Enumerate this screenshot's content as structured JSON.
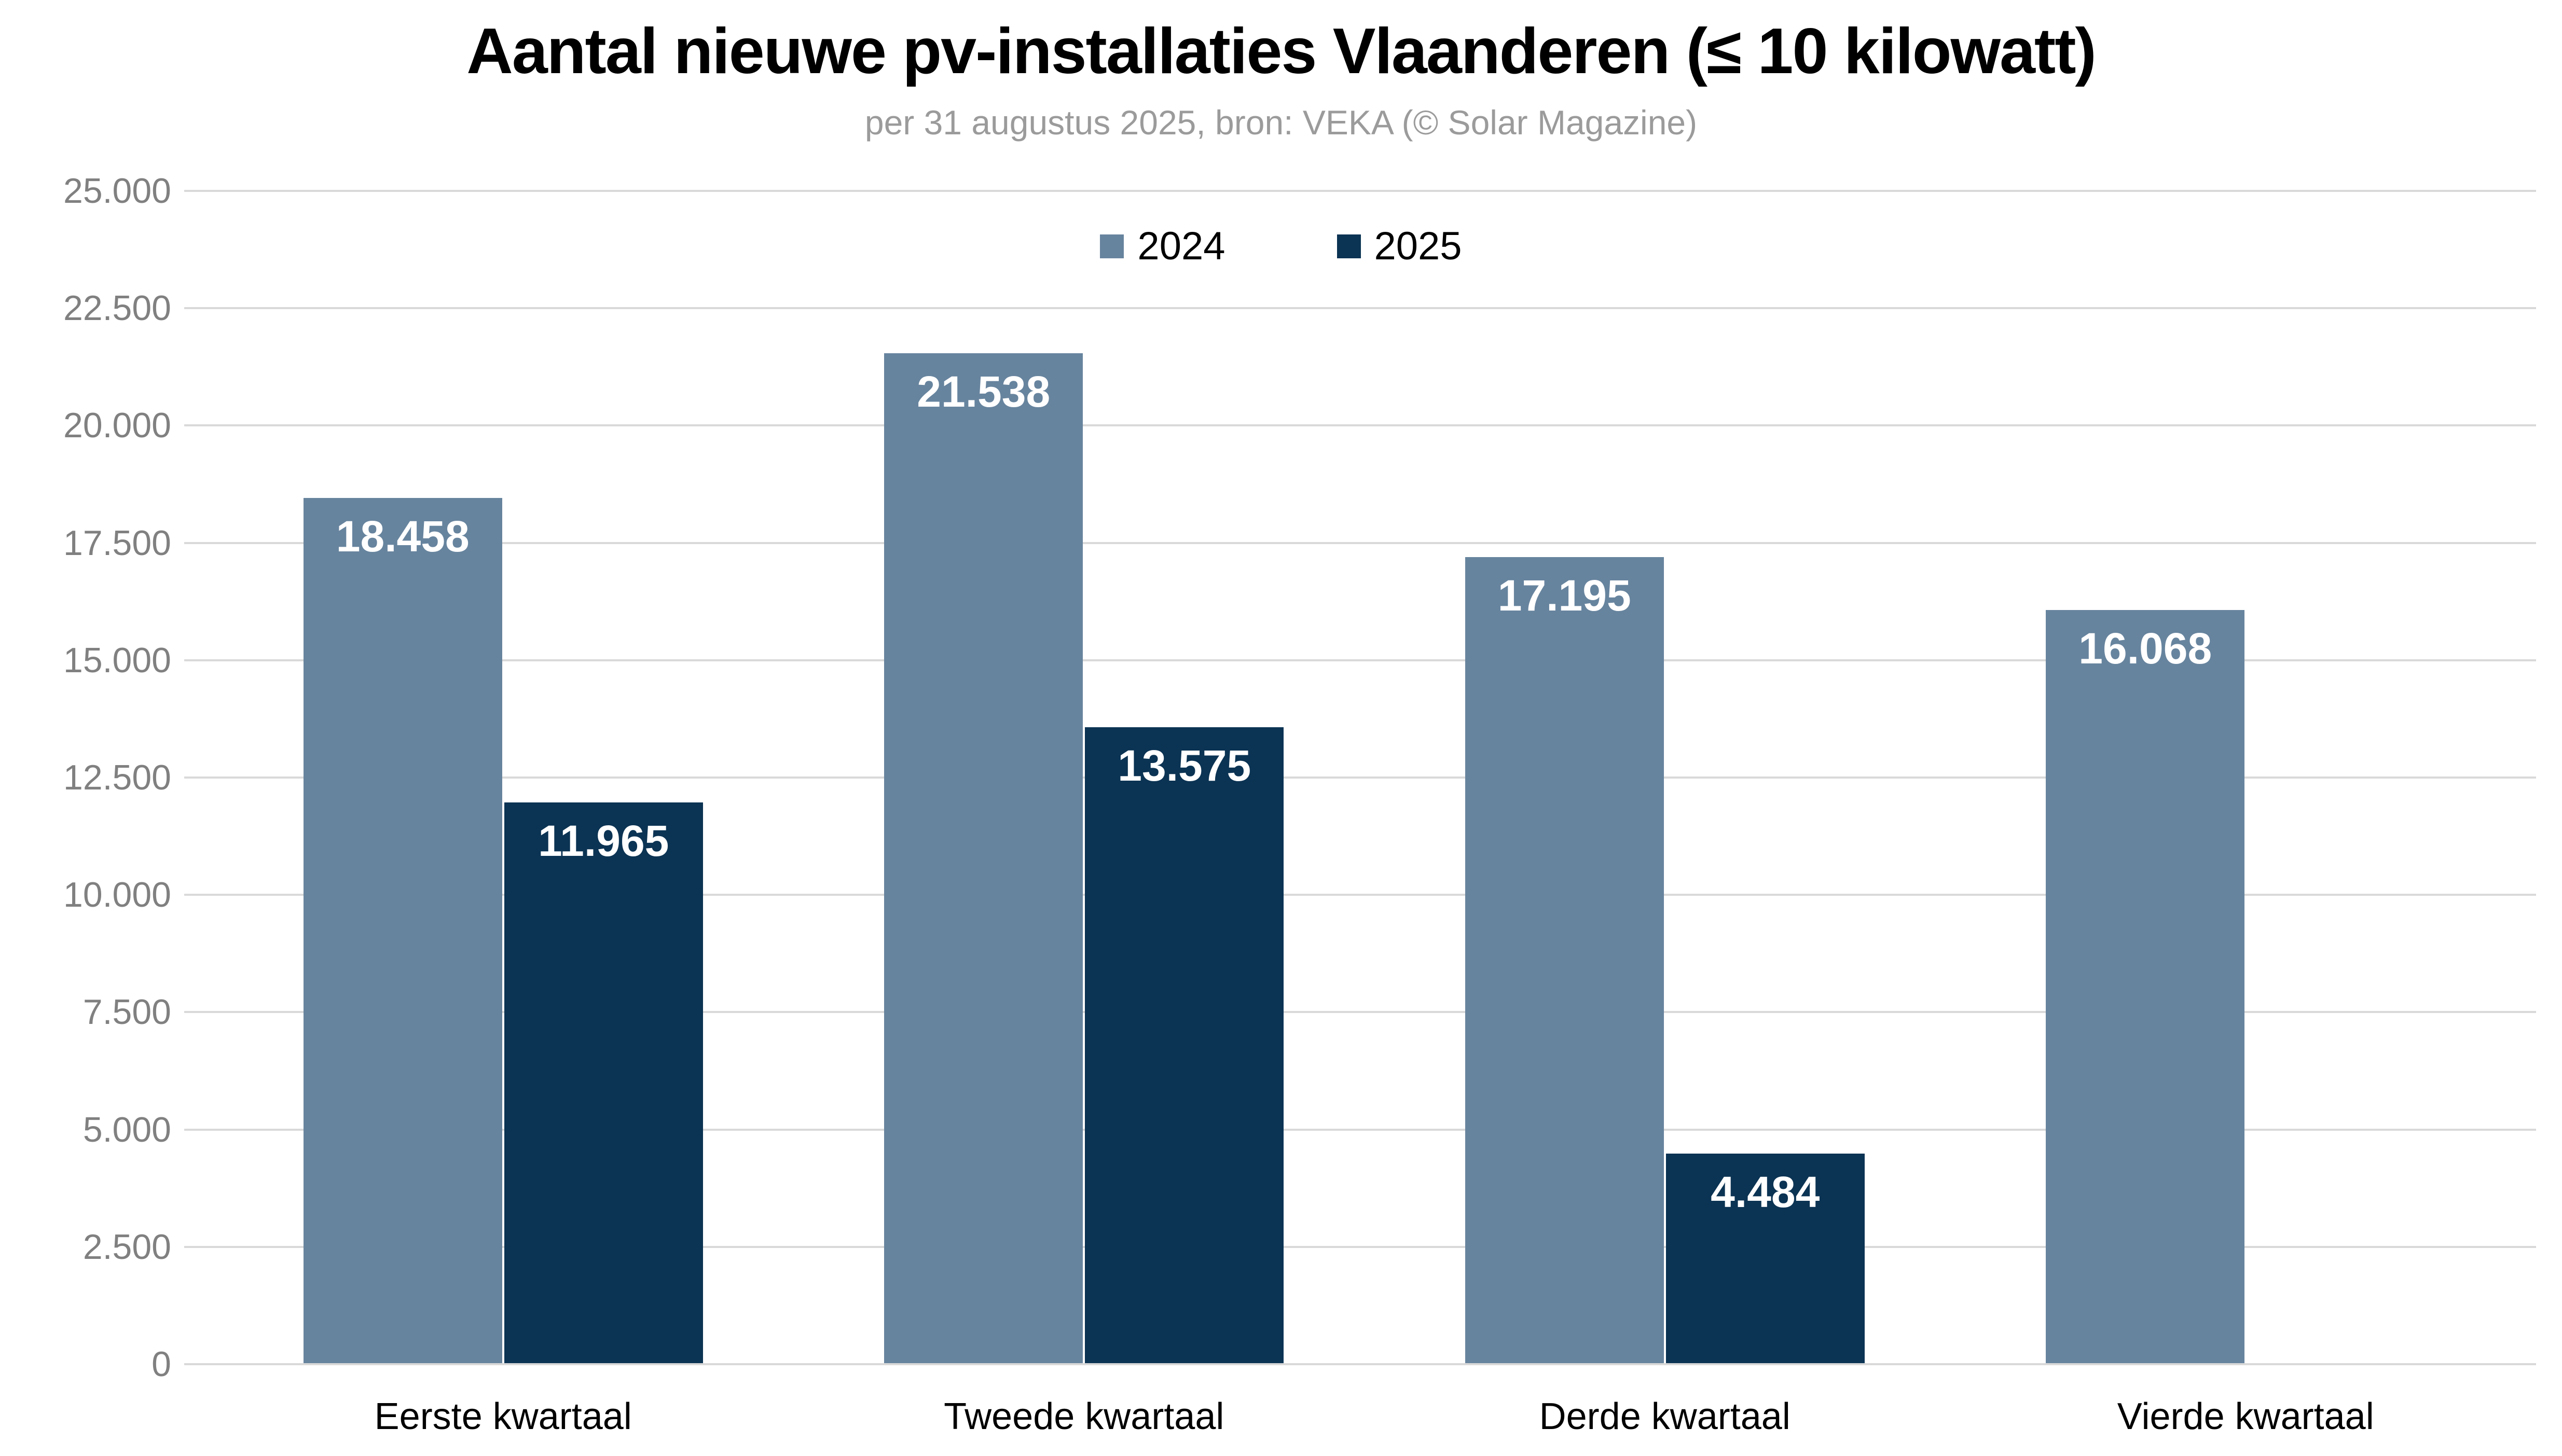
{
  "header": {
    "title": "Aantal nieuwe pv-installaties Vlaanderen (≤ 10 kilowatt)",
    "subtitle": "per 31 augustus 2025, bron: VEKA (© Solar Magazine)"
  },
  "colors": {
    "background": "#ffffff",
    "title": "#000000",
    "subtitle": "#9b9b9b",
    "gridline": "#d9d9d9",
    "axis_tick_label": "#808080",
    "category_label": "#000000",
    "value_label": "#ffffff",
    "series_2024": "#67849e",
    "series_2025": "#0b3353"
  },
  "legend": {
    "items": [
      {
        "label": "2024",
        "color": "#67849e"
      },
      {
        "label": "2025",
        "color": "#0b3353"
      }
    ]
  },
  "chart_data": {
    "type": "bar",
    "title": "Aantal nieuwe pv-installaties Vlaanderen (≤ 10 kilowatt)",
    "subtitle": "per 31 augustus 2025, bron: VEKA (© Solar Magazine)",
    "categories": [
      "Eerste kwartaal",
      "Tweede kwartaal",
      "Derde kwartaal",
      "Vierde kwartaal"
    ],
    "series": [
      {
        "name": "2024",
        "color": "#67849e",
        "values": [
          18458,
          21538,
          17195,
          16068
        ],
        "value_labels": [
          "18.458",
          "21.538",
          "17.195",
          "16.068"
        ]
      },
      {
        "name": "2025",
        "color": "#0b3353",
        "values": [
          11965,
          13575,
          4484,
          null
        ],
        "value_labels": [
          "11.965",
          "13.575",
          "4.484",
          null
        ]
      }
    ],
    "xlabel": "",
    "ylabel": "",
    "ylim": [
      0,
      25000
    ],
    "ytick_interval": 2500,
    "ytick_labels": [
      "0",
      "2.500",
      "5.000",
      "7.500",
      "10.000",
      "12.500",
      "15.000",
      "17.500",
      "20.000",
      "22.500",
      "25.000"
    ],
    "grid": "horizontal",
    "legend_position": "top-center"
  }
}
